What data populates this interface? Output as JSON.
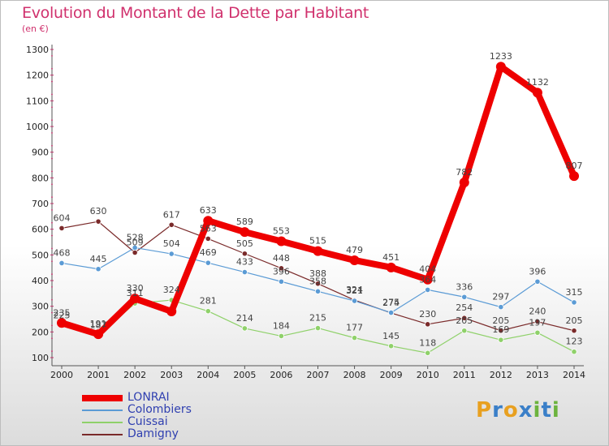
{
  "header": {
    "title": "Evolution du Montant de la Dette par Habitant",
    "subtitle": "(en €)"
  },
  "brand": {
    "letters": [
      "P",
      "r",
      "o",
      "x",
      "i",
      "t",
      "i"
    ],
    "colors": [
      "#e8a020",
      "#3a7fc8",
      "#e8a020",
      "#3a7fc8",
      "#6cb33e",
      "#3a7fc8",
      "#6cb33e"
    ]
  },
  "chart_data": {
    "type": "line",
    "title": "Evolution du Montant de la Dette par Habitant",
    "subtitle": "(en €)",
    "xlabel": "",
    "ylabel": "",
    "x": [
      "2000",
      "2001",
      "2002",
      "2003",
      "2004",
      "2005",
      "2006",
      "2007",
      "2008",
      "2009",
      "2010",
      "2011",
      "2012",
      "2013",
      "2014"
    ],
    "ylim": [
      100,
      1300
    ],
    "yticks": [
      100,
      200,
      300,
      400,
      500,
      600,
      700,
      800,
      900,
      1000,
      1100,
      1200,
      1300
    ],
    "grid": false,
    "legend_position": "bottom-left",
    "series": [
      {
        "name": "LONRAI",
        "color": "#ee0000",
        "width": 8,
        "values": [
          235,
          191,
          330,
          280,
          633,
          589,
          553,
          515,
          479,
          451,
          404,
          782,
          1233,
          1132,
          807
        ],
        "labels": [
          "235",
          "191",
          "330",
          "",
          "633",
          "589",
          "553",
          "515",
          "479",
          "451",
          "404",
          "782",
          "1233",
          "1132",
          "807"
        ]
      },
      {
        "name": "Colombiers",
        "color": "#5b9bd5",
        "width": 1.2,
        "values": [
          468,
          445,
          528,
          504,
          469,
          433,
          396,
          358,
          321,
          275,
          364,
          336,
          297,
          396,
          315
        ],
        "labels": [
          "468",
          "445",
          "528",
          "504",
          "469",
          "433",
          "396",
          "358",
          "321",
          "275",
          "364",
          "336",
          "297",
          "396",
          "315"
        ]
      },
      {
        "name": "Cuissai",
        "color": "#8fd16a",
        "width": 1.2,
        "values": [
          225,
          187,
          311,
          324,
          281,
          214,
          184,
          215,
          177,
          145,
          118,
          205,
          169,
          197,
          123
        ],
        "labels": [
          "225",
          "187",
          "311",
          "324",
          "281",
          "214",
          "184",
          "215",
          "177",
          "145",
          "118",
          "205",
          "169",
          "197",
          "123"
        ]
      },
      {
        "name": "Damigny",
        "color": "#7a2a2a",
        "width": 1.2,
        "values": [
          604,
          630,
          509,
          617,
          563,
          505,
          448,
          388,
          324,
          274,
          230,
          254,
          205,
          240,
          205
        ],
        "labels": [
          "604",
          "630",
          "509",
          "617",
          "563",
          "505",
          "448",
          "388",
          "324",
          "274",
          "230",
          "254",
          "205",
          "240",
          "205"
        ]
      }
    ]
  }
}
